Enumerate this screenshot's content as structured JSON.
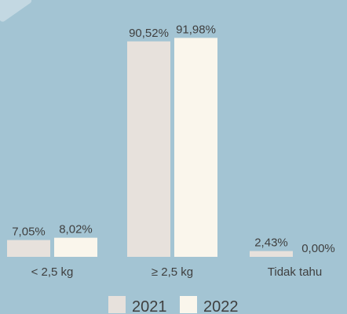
{
  "chart_data": {
    "type": "bar",
    "categories": [
      "< 2,5 kg",
      "≥ 2,5 kg",
      "Tidak tahu"
    ],
    "series": [
      {
        "name": "2021",
        "values": [
          7.05,
          90.52,
          2.43
        ],
        "labels": [
          "7,05%",
          "90,52%",
          "2,43%"
        ],
        "color": "#e7e1dc"
      },
      {
        "name": "2022",
        "values": [
          8.02,
          91.98,
          0.0
        ],
        "labels": [
          "8,02%",
          "91,98%",
          "0,00%"
        ],
        "color": "#faf6ec"
      }
    ],
    "ylim": [
      0,
      100
    ],
    "legend_position": "bottom",
    "grid": false
  },
  "colors": {
    "background": "#a3c4d3",
    "text": "#3f3f3f"
  }
}
